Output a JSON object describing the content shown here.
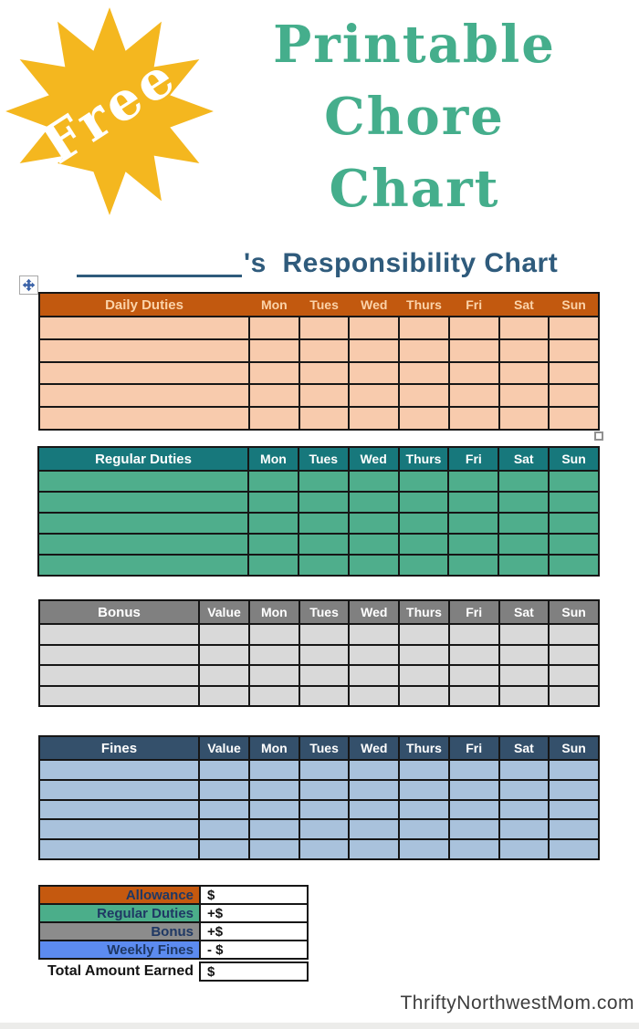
{
  "badge": {
    "label": "Free",
    "color": "#F4B71F",
    "icon": "starburst-icon"
  },
  "title": {
    "lines": [
      "Printable",
      "Chore",
      "Chart"
    ],
    "color": "#45AE8C"
  },
  "heading": {
    "suffix": "'s  Responsibility Chart",
    "color": "#2F5B7C"
  },
  "icons": {
    "move_handle": "move-cross-icon",
    "resize_handle": "resize-square-icon"
  },
  "chore_tables": [
    {
      "id": "daily",
      "label": "Daily Duties",
      "value_col": null,
      "days": [
        "Mon",
        "Tues",
        "Wed",
        "Thurs",
        "Fri",
        "Sat",
        "Sun"
      ],
      "blank_rows": 5,
      "colors": {
        "header_bg": "#C2590F",
        "header_text": "#FBD3A9",
        "row_bg": "#F8CBAD",
        "header_dividers": false
      }
    },
    {
      "id": "regular",
      "label": "Regular Duties",
      "value_col": null,
      "days": [
        "Mon",
        "Tues",
        "Wed",
        "Thurs",
        "Fri",
        "Sat",
        "Sun"
      ],
      "blank_rows": 5,
      "colors": {
        "header_bg": "#17787C",
        "header_text": "#FFFFFF",
        "row_bg": "#4FAE8C",
        "header_dividers": true
      }
    },
    {
      "id": "bonus",
      "label": "Bonus",
      "value_col": "Value",
      "days": [
        "Mon",
        "Tues",
        "Wed",
        "Thurs",
        "Fri",
        "Sat",
        "Sun"
      ],
      "blank_rows": 4,
      "colors": {
        "header_bg": "#808080",
        "header_text": "#FFFFFF",
        "row_bg": "#D9D9D9",
        "header_dividers": true
      }
    },
    {
      "id": "fines",
      "label": "Fines",
      "value_col": "Value",
      "days": [
        "Mon",
        "Tues",
        "Wed",
        "Thurs",
        "Fri",
        "Sat",
        "Sun"
      ],
      "blank_rows": 5,
      "colors": {
        "header_bg": "#34506B",
        "header_text": "#FFFFFF",
        "row_bg": "#A9C2DC",
        "header_dividers": true
      }
    }
  ],
  "summary": {
    "label_color": "#1F3864",
    "total_label_color": "#141414",
    "rows": [
      {
        "label": "Allowance",
        "value": "$",
        "bg": "#C5590F",
        "total": false
      },
      {
        "label": "Regular Duties",
        "value": "+$",
        "bg": "#4BAE8A",
        "total": false
      },
      {
        "label": "Bonus",
        "value": "+$",
        "bg": "#8C8C8C",
        "total": false
      },
      {
        "label": "Weekly Fines",
        "value": "- $",
        "bg": "#5C8BF0",
        "total": false
      },
      {
        "label": "Total Amount Earned",
        "value": "$",
        "bg": null,
        "total": true
      }
    ]
  },
  "watermark": "ThriftyNorthwestMom.com"
}
